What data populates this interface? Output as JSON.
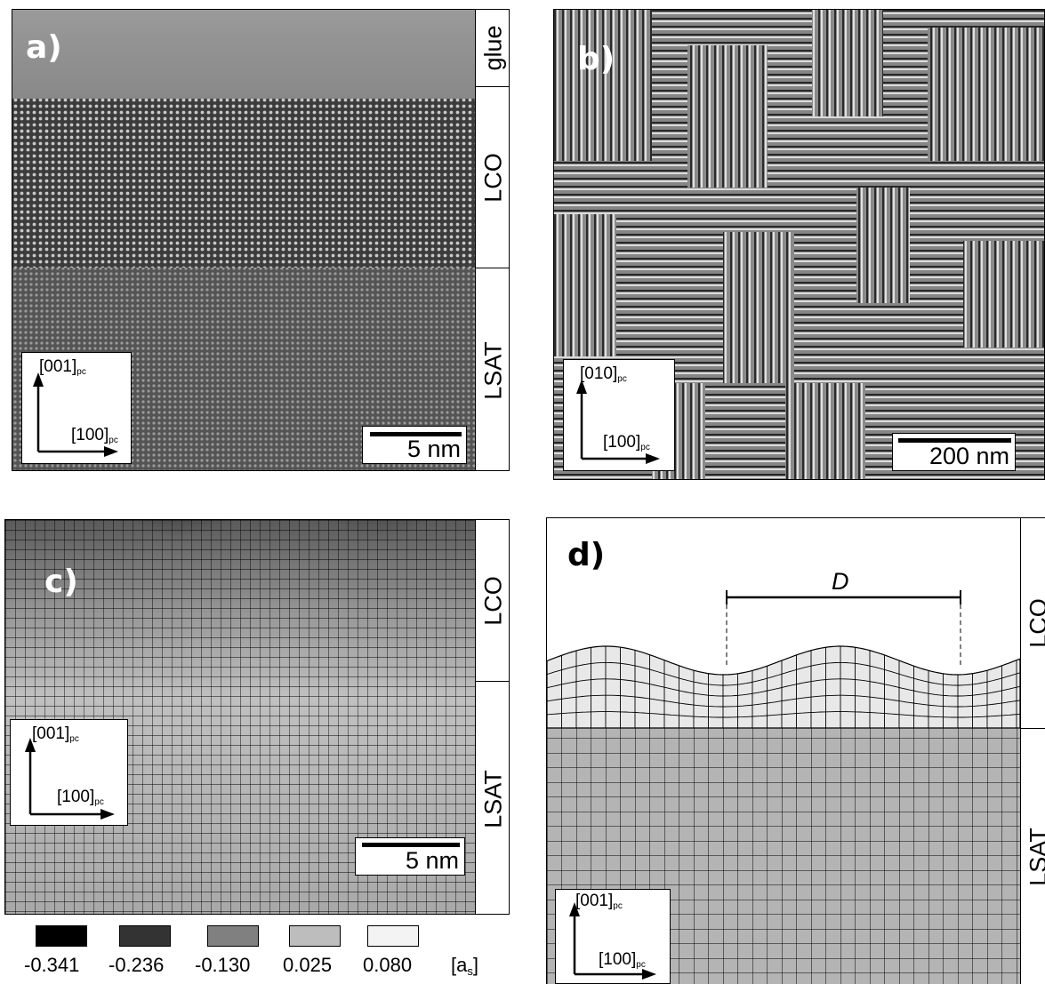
{
  "panels": {
    "a": {
      "label": "a)",
      "layers": [
        "glue",
        "LCO",
        "LSAT"
      ],
      "axis_up": "[001]",
      "axis_right": "[100]",
      "axis_sub": "pc",
      "scale": "5 nm"
    },
    "b": {
      "label": "b)",
      "axis_up": "[010]",
      "axis_right": "[100]",
      "axis_sub": "pc",
      "scale": "200 nm"
    },
    "c": {
      "label": "c)",
      "layers": [
        "LCO",
        "LSAT"
      ],
      "axis_up": "[001]",
      "axis_right": "[100]",
      "axis_sub": "pc",
      "scale": "5 nm",
      "colorbar": {
        "values": [
          "-0.341",
          "-0.236",
          "-0.130",
          "0.025",
          "0.080"
        ],
        "colors": [
          "#000000",
          "#333333",
          "#808080",
          "#bdbdbd",
          "#f3f3f3"
        ],
        "unit": "[a",
        "unit_sub": "s",
        "unit_close": "]"
      }
    },
    "d": {
      "label": "d)",
      "period_label": "D",
      "layers": [
        "LCO",
        "LSAT"
      ],
      "axis_up": "[001]",
      "axis_right": "[100]",
      "axis_sub": "pc",
      "colors": {
        "lco": "#e8e8e8",
        "lsat": "#b4b4b4"
      }
    }
  }
}
